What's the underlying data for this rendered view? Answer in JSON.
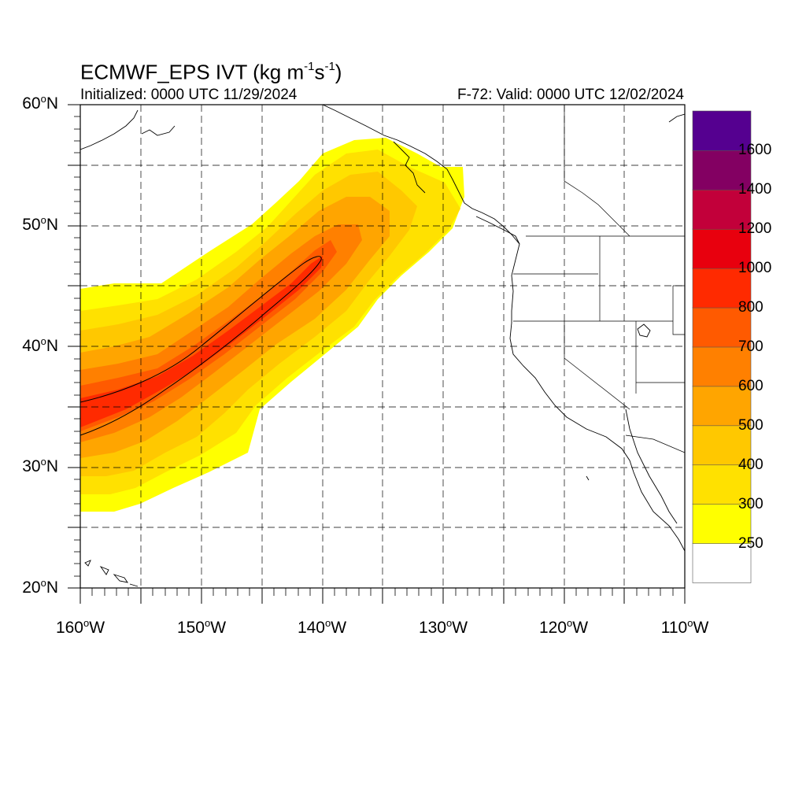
{
  "title": {
    "prefix": "ECMWF_EPS IVT (kg m",
    "exp1": "-1",
    "mid": "s",
    "exp2": "-1",
    "suffix": ")"
  },
  "initialized": "Initialized: 0000 UTC 11/29/2024",
  "valid": "F-72: Valid: 0000 UTC 12/02/2024",
  "degree_symbol": "o",
  "lat_labels": [
    {
      "num": "60",
      "hem": "N"
    },
    {
      "num": "50",
      "hem": "N"
    },
    {
      "num": "40",
      "hem": "N"
    },
    {
      "num": "30",
      "hem": "N"
    },
    {
      "num": "20",
      "hem": "N"
    }
  ],
  "lon_labels": [
    {
      "num": "160",
      "hem": "W"
    },
    {
      "num": "150",
      "hem": "W"
    },
    {
      "num": "140",
      "hem": "W"
    },
    {
      "num": "130",
      "hem": "W"
    },
    {
      "num": "120",
      "hem": "W"
    },
    {
      "num": "110",
      "hem": "W"
    }
  ],
  "colorbar": {
    "labels": [
      "1600",
      "1400",
      "1200",
      "1000",
      "800",
      "700",
      "600",
      "500",
      "400",
      "300",
      "250"
    ],
    "colors": [
      "#ffffff",
      "#ffff00",
      "#ffe100",
      "#ffc800",
      "#ffa500",
      "#ff8000",
      "#ff5a00",
      "#ff2a00",
      "#e8000e",
      "#c2003a",
      "#830062",
      "#550090"
    ]
  },
  "map": {
    "lon_range": [
      -160,
      -110
    ],
    "lat_range": [
      20,
      60
    ],
    "grid": true,
    "contour_level": 800
  }
}
